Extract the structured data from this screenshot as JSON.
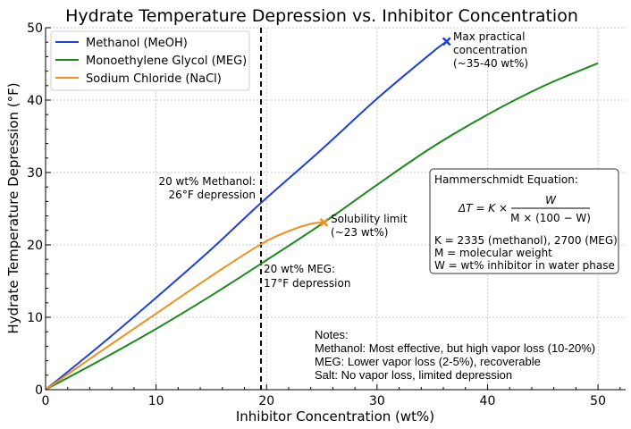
{
  "chart_data": {
    "type": "line",
    "title": "Hydrate Temperature Depression vs. Inhibitor Concentration",
    "xlabel": "Inhibitor Concentration (wt%)",
    "ylabel": "Hydrate Temperature Depression (°F)",
    "xlim": [
      0,
      52.5
    ],
    "ylim": [
      0,
      50
    ],
    "xticks": [
      0,
      10,
      20,
      30,
      40,
      50
    ],
    "yticks": [
      0,
      10,
      20,
      30,
      40,
      50
    ],
    "grid": true,
    "legend_placement": "top-left",
    "series": [
      {
        "name": "Methanol (MeOH)",
        "color": "#1f3fdc",
        "x": [
          0,
          5,
          10,
          15,
          19.5,
          25,
          30,
          35,
          36.3
        ],
        "y": [
          0,
          6.2,
          12.7,
          19.4,
          25.8,
          33.2,
          40.2,
          46.6,
          48.1
        ],
        "end_marker": "x"
      },
      {
        "name": "Monoethylene Glycol (MEG)",
        "color": "#1a8a1a",
        "x": [
          0,
          5,
          10,
          15,
          19.5,
          25,
          30,
          35,
          40,
          45,
          50
        ],
        "y": [
          0,
          4.1,
          8.4,
          13.0,
          17.4,
          22.9,
          28.3,
          33.5,
          38.0,
          41.9,
          45.1
        ]
      },
      {
        "name": "Sodium Chloride (NaCl)",
        "color": "#f0901a",
        "x": [
          0,
          5,
          10,
          15,
          19.5,
          22,
          24,
          25.2
        ],
        "y": [
          0,
          5.3,
          10.5,
          15.7,
          20.1,
          21.9,
          22.9,
          23.1
        ],
        "end_marker": "x"
      }
    ],
    "vline": {
      "x": 19.5,
      "style": "dashed",
      "color": "#000000"
    },
    "annotations": {
      "methanol_max": [
        "Max practical",
        "concentration",
        "(~35-40 wt%)"
      ],
      "nacl_limit": [
        "Solubility limit",
        "(~23 wt%)"
      ],
      "methanol_20": [
        "20 wt% Methanol:",
        "26°F depression"
      ],
      "meg_20": [
        "20 wt% MEG:",
        "17°F depression"
      ]
    },
    "equation_box": {
      "heading": "Hammerschmidt Equation:",
      "lhs": "ΔT = K ×",
      "numerator": "W",
      "denominator": "M × (100 − W)",
      "lines": [
        "K = 2335 (methanol), 2700 (MEG)",
        "M = molecular weight",
        "W = wt% inhibitor in water phase"
      ]
    },
    "notes": [
      "Notes:",
      "Methanol: Most effective, but high vapor loss (10-20%)",
      "MEG: Lower vapor loss (2-5%), recoverable",
      "Salt: No vapor loss, limited depression"
    ]
  }
}
